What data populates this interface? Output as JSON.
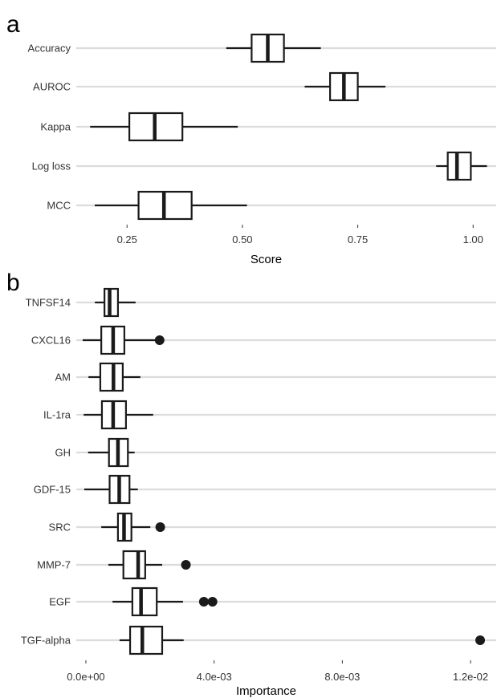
{
  "chart_data": [
    {
      "type": "boxplot",
      "panel_label": "a",
      "xlabel": "Score",
      "xlim": [
        0.14,
        1.05
      ],
      "xticks": [
        0.25,
        0.5,
        0.75,
        1.0
      ],
      "xtick_labels": [
        "0.25",
        "0.50",
        "0.75",
        "1.00"
      ],
      "grid": true,
      "categories": [
        "Accuracy",
        "AUROC",
        "Kappa",
        "Log loss",
        "MCC"
      ],
      "boxes": [
        {
          "category": "Accuracy",
          "whisker_low": 0.465,
          "q1": 0.52,
          "median": 0.555,
          "q3": 0.59,
          "whisker_high": 0.67,
          "outliers": []
        },
        {
          "category": "AUROC",
          "whisker_low": 0.635,
          "q1": 0.69,
          "median": 0.72,
          "q3": 0.75,
          "whisker_high": 0.81,
          "outliers": []
        },
        {
          "category": "Kappa",
          "whisker_low": 0.17,
          "q1": 0.255,
          "median": 0.31,
          "q3": 0.37,
          "whisker_high": 0.49,
          "outliers": []
        },
        {
          "category": "Log loss",
          "whisker_low": 0.92,
          "q1": 0.945,
          "median": 0.965,
          "q3": 0.995,
          "whisker_high": 1.03,
          "outliers": []
        },
        {
          "category": "MCC",
          "whisker_low": 0.18,
          "q1": 0.275,
          "median": 0.33,
          "q3": 0.39,
          "whisker_high": 0.51,
          "outliers": []
        }
      ]
    },
    {
      "type": "boxplot",
      "panel_label": "b",
      "xlabel": "Importance",
      "xlim": [
        -0.0003,
        0.0128
      ],
      "xticks": [
        0.0,
        0.004,
        0.008,
        0.012
      ],
      "xtick_labels": [
        "0.0e+00",
        "4.0e-03",
        "8.0e-03",
        "1.2e-02"
      ],
      "grid": true,
      "categories": [
        "TNFSF14",
        "CXCL16",
        "AM",
        "IL-1ra",
        "GH",
        "GDF-15",
        "SRC",
        "MMP-7",
        "EGF",
        "TGF-alpha"
      ],
      "boxes": [
        {
          "category": "TNFSF14",
          "whisker_low": 0.00028,
          "q1": 0.00058,
          "median": 0.00074,
          "q3": 0.001,
          "whisker_high": 0.00155,
          "outliers": []
        },
        {
          "category": "CXCL16",
          "whisker_low": -0.0001,
          "q1": 0.00048,
          "median": 0.00085,
          "q3": 0.0012,
          "whisker_high": 0.0023,
          "outliers": [
            0.0023
          ]
        },
        {
          "category": "AM",
          "whisker_low": 8e-05,
          "q1": 0.00045,
          "median": 0.00086,
          "q3": 0.00115,
          "whisker_high": 0.0017,
          "outliers": []
        },
        {
          "category": "IL-1ra",
          "whisker_low": -7e-05,
          "q1": 0.0005,
          "median": 0.00085,
          "q3": 0.00125,
          "whisker_high": 0.0021,
          "outliers": []
        },
        {
          "category": "GH",
          "whisker_low": 7e-05,
          "q1": 0.00072,
          "median": 0.001,
          "q3": 0.00131,
          "whisker_high": 0.00152,
          "outliers": []
        },
        {
          "category": "GDF-15",
          "whisker_low": -5e-05,
          "q1": 0.00074,
          "median": 0.00104,
          "q3": 0.00136,
          "whisker_high": 0.00162,
          "outliers": []
        },
        {
          "category": "SRC",
          "whisker_low": 0.00048,
          "q1": 0.001,
          "median": 0.00119,
          "q3": 0.00142,
          "whisker_high": 0.00201,
          "outliers": [
            0.00232
          ]
        },
        {
          "category": "MMP-7",
          "whisker_low": 0.0007,
          "q1": 0.00117,
          "median": 0.00163,
          "q3": 0.00185,
          "whisker_high": 0.00238,
          "outliers": [
            0.00312
          ]
        },
        {
          "category": "EGF",
          "whisker_low": 0.00083,
          "q1": 0.00145,
          "median": 0.00172,
          "q3": 0.00221,
          "whisker_high": 0.00303,
          "outliers": [
            0.00368,
            0.00395
          ]
        },
        {
          "category": "TGF-alpha",
          "whisker_low": 0.00105,
          "q1": 0.00138,
          "median": 0.00176,
          "q3": 0.00238,
          "whisker_high": 0.00305,
          "outliers": [
            0.0123
          ]
        }
      ]
    }
  ]
}
